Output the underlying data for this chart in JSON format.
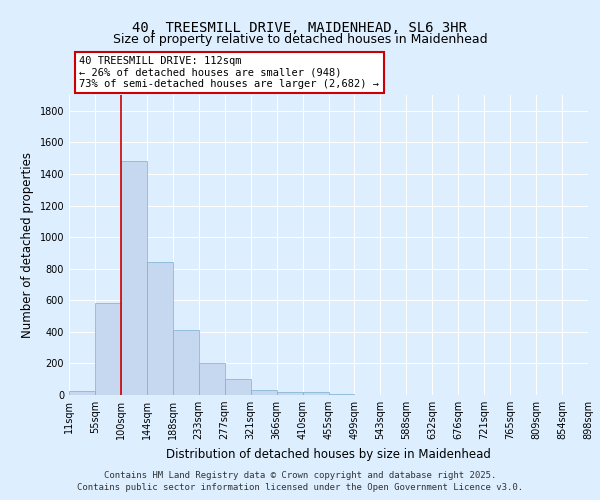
{
  "title_line1": "40, TREESMILL DRIVE, MAIDENHEAD, SL6 3HR",
  "title_line2": "Size of property relative to detached houses in Maidenhead",
  "xlabel": "Distribution of detached houses by size in Maidenhead",
  "ylabel": "Number of detached properties",
  "bar_values": [
    25,
    580,
    1480,
    840,
    410,
    200,
    100,
    30,
    20,
    20,
    5,
    3,
    2,
    1,
    1,
    1,
    1,
    1,
    1,
    1
  ],
  "bar_labels": [
    "11sqm",
    "55sqm",
    "100sqm",
    "144sqm",
    "188sqm",
    "233sqm",
    "277sqm",
    "321sqm",
    "366sqm",
    "410sqm",
    "455sqm",
    "499sqm",
    "543sqm",
    "588sqm",
    "632sqm",
    "676sqm",
    "721sqm",
    "765sqm",
    "809sqm",
    "854sqm",
    "898sqm"
  ],
  "bar_color": "#c5d8f0",
  "bar_edgecolor": "#7bafd4",
  "annotation_text": "40 TREESMILL DRIVE: 112sqm\n← 26% of detached houses are smaller (948)\n73% of semi-detached houses are larger (2,682) →",
  "annotation_box_color": "#ffffff",
  "annotation_box_edgecolor": "#cc0000",
  "vline_color": "#cc0000",
  "vline_x": 1.5,
  "ylim": [
    0,
    1900
  ],
  "yticks": [
    0,
    200,
    400,
    600,
    800,
    1000,
    1200,
    1400,
    1600,
    1800
  ],
  "background_color": "#ddeeff",
  "plot_background": "#ddeeff",
  "grid_color": "#ffffff",
  "footer_line1": "Contains HM Land Registry data © Crown copyright and database right 2025.",
  "footer_line2": "Contains public sector information licensed under the Open Government Licence v3.0.",
  "title_fontsize": 10,
  "subtitle_fontsize": 9,
  "axis_label_fontsize": 8.5,
  "tick_fontsize": 7,
  "annotation_fontsize": 7.5,
  "footer_fontsize": 6.5
}
